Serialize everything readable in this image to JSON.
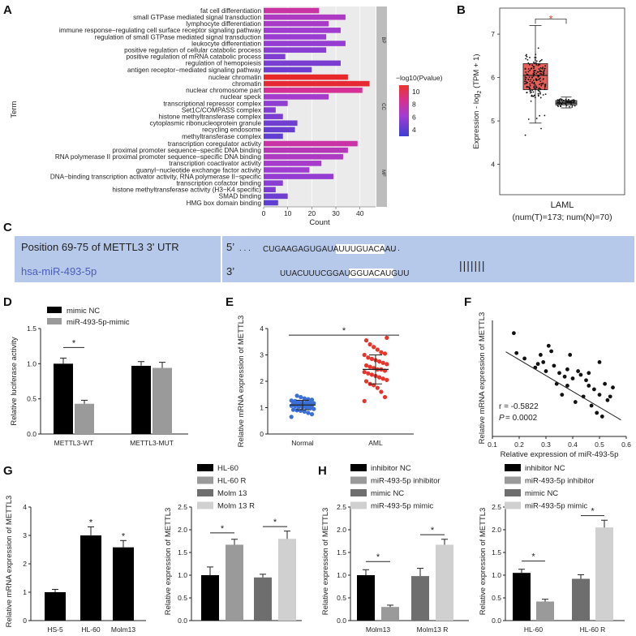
{
  "panels": {
    "A": {
      "label": "A"
    },
    "B": {
      "label": "B"
    },
    "C": {
      "label": "C"
    },
    "D": {
      "label": "D"
    },
    "E": {
      "label": "E"
    },
    "F": {
      "label": "F"
    },
    "G": {
      "label": "G"
    },
    "H": {
      "label": "H"
    }
  },
  "colors": {
    "black": "#000000",
    "gray": "#9a9a9a",
    "darkgray": "#6e6e6e",
    "lightgray": "#d0d0d0",
    "red": "#e8352c",
    "blue": "#3b3fd0",
    "seqbg": "#b7c9ea",
    "mirna": "#4b5db8"
  },
  "chart_data": [
    {
      "id": "A",
      "type": "bar",
      "orientation": "horizontal",
      "xlabel": "Count",
      "ylabel": "Term",
      "xlim": [
        0,
        45
      ],
      "xticks": [
        "0",
        "10",
        "20",
        "30",
        "40"
      ],
      "colorbar": {
        "title": "−log10(Pvalue)",
        "ticks": [
          "10",
          "8",
          "6",
          "4"
        ],
        "min": 3,
        "max": 11
      },
      "groups": [
        {
          "name": "BP",
          "terms": [
            {
              "term": "fat cell differentiation",
              "count": 23,
              "p": 8.5
            },
            {
              "term": "small GTPase mediated signal transduction",
              "count": 34,
              "p": 7.2
            },
            {
              "term": "lymphocyte differentiation",
              "count": 27,
              "p": 7.0
            },
            {
              "term": "immune response−regulating cell surface receptor signaling pathway",
              "count": 32,
              "p": 6.7
            },
            {
              "term": "regulation of small GTPase mediated signal transduction",
              "count": 26,
              "p": 6.4
            },
            {
              "term": "leukocyte differentiation",
              "count": 34,
              "p": 6.2
            },
            {
              "term": "positive regulation of cellular catabolic process",
              "count": 26,
              "p": 5.8
            },
            {
              "term": "positive regulation of mRNA catabolic process",
              "count": 9,
              "p": 5.5
            },
            {
              "term": "regulation of hemopoiesis",
              "count": 32,
              "p": 5.2
            },
            {
              "term": "antigen receptor−mediated signaling pathway",
              "count": 20,
              "p": 4.9
            }
          ]
        },
        {
          "name": "CC",
          "terms": [
            {
              "term": "nuclear chromatin",
              "count": 35,
              "p": 11.0
            },
            {
              "term": "chromatin",
              "count": 44,
              "p": 10.8
            },
            {
              "term": "nuclear chromosome part",
              "count": 41,
              "p": 9.0
            },
            {
              "term": "nuclear speck",
              "count": 27,
              "p": 6.8
            },
            {
              "term": "transcriptional repressor complex",
              "count": 10,
              "p": 6.0
            },
            {
              "term": "Set1C/COMPASS complex",
              "count": 5,
              "p": 5.6
            },
            {
              "term": "histone methyltransferase complex",
              "count": 8,
              "p": 5.3
            },
            {
              "term": "cytoplasmic ribonucleoprotein granule",
              "count": 14,
              "p": 4.9
            },
            {
              "term": "recycling endosome",
              "count": 13,
              "p": 4.6
            },
            {
              "term": "methyltransferase complex",
              "count": 8,
              "p": 4.3
            }
          ]
        },
        {
          "name": "MF",
          "terms": [
            {
              "term": "transcription coregulator activity",
              "count": 39,
              "p": 8.4
            },
            {
              "term": "proximal promoter sequence−specific DNA binding",
              "count": 35,
              "p": 7.6
            },
            {
              "term": "RNA polymerase II proximal promoter sequence−specific DNA binding",
              "count": 33,
              "p": 7.2
            },
            {
              "term": "transcription coactivator activity",
              "count": 24,
              "p": 6.9
            },
            {
              "term": "guanyl−nucleotide exchange factor activity",
              "count": 19,
              "p": 6.6
            },
            {
              "term": "DNA−binding transcription activator activity, RNA polymerase II−specific",
              "count": 29,
              "p": 6.2
            },
            {
              "term": "transcription cofactor binding",
              "count": 8,
              "p": 5.8
            },
            {
              "term": "histone methyltransferase activity (H3−K4 specific)",
              "count": 5,
              "p": 5.4
            },
            {
              "term": "SMAD binding",
              "count": 10,
              "p": 4.8
            },
            {
              "term": "HMG box domain binding",
              "count": 6,
              "p": 4.2
            }
          ]
        }
      ]
    },
    {
      "id": "B",
      "type": "box",
      "ylabel_prefix": "Expression - log",
      "ylabel_sub": "2",
      "ylabel_suffix": " (TPM + 1)",
      "ylim": [
        3.3,
        7.6
      ],
      "yticks": [
        "4",
        "5",
        "6",
        "7"
      ],
      "xlabel": "LAML",
      "xsublabel": "(num(T)=173; num(N)=70)",
      "signif": "*",
      "boxes": [
        {
          "name": "Tumor",
          "q1": 5.72,
          "median": 6.05,
          "q3": 6.32,
          "whisker_low": 4.95,
          "whisker_high": 7.2
        },
        {
          "name": "Normal",
          "q1": 5.37,
          "median": 5.41,
          "q3": 5.47,
          "whisker_low": 5.3,
          "whisker_high": 5.55
        }
      ]
    },
    {
      "id": "C",
      "type": "table",
      "rows": [
        {
          "label": "Position 69-75 of METTL3 3' UTR",
          "end": "5’",
          "seq": "CUGAAGAGUGAUAUUUGUACAAU",
          "dots": ". . .",
          "site": "UGUACAAU"
        },
        {
          "label": "hsa-miR-493-5p",
          "end": "3’",
          "seq": "UUACUUUCGGAUGGUACAUGUU",
          "site": "ACAUGUU"
        }
      ],
      "pairing": "|||||||"
    },
    {
      "id": "D",
      "type": "bar",
      "ylabel": "Relative luciferase activity",
      "ylim": [
        0,
        1.5
      ],
      "yticks": [
        "0.0",
        "0.5",
        "1.0",
        "1.5"
      ],
      "categories": [
        "METTL3-WT",
        "METTL3-MUT"
      ],
      "series": [
        {
          "name": "mimic NC",
          "values": [
            1.0,
            0.97
          ],
          "err": [
            0.08,
            0.06
          ]
        },
        {
          "name": "miR-493-5p-mimic",
          "values": [
            0.43,
            0.94
          ],
          "err": [
            0.05,
            0.08
          ]
        }
      ],
      "signif": "*"
    },
    {
      "id": "E",
      "type": "scatter",
      "ylabel": "Relative mRNA expression of METTL3",
      "ylim": [
        0,
        4
      ],
      "yticks": [
        "0",
        "1",
        "2",
        "3",
        "4"
      ],
      "categories": [
        "Normal",
        "AML"
      ],
      "groups": [
        {
          "name": "Normal",
          "mean": 1.1,
          "sd": 0.18,
          "points": [
            0.65,
            0.75,
            0.8,
            0.85,
            0.88,
            0.9,
            0.92,
            0.95,
            0.97,
            1.0,
            1.02,
            1.03,
            1.05,
            1.07,
            1.08,
            1.1,
            1.1,
            1.12,
            1.13,
            1.15,
            1.17,
            1.18,
            1.2,
            1.2,
            1.22,
            1.25,
            1.27,
            1.3,
            1.32,
            1.35,
            1.4,
            1.45
          ]
        },
        {
          "name": "AML",
          "mean": 2.45,
          "sd": 0.55,
          "points": [
            1.25,
            1.4,
            1.6,
            1.75,
            1.85,
            1.9,
            2.0,
            2.05,
            2.1,
            2.15,
            2.2,
            2.25,
            2.3,
            2.35,
            2.4,
            2.45,
            2.45,
            2.5,
            2.55,
            2.6,
            2.65,
            2.7,
            2.75,
            2.8,
            2.85,
            2.9,
            3.0,
            3.05,
            3.1,
            3.2,
            3.3,
            3.4,
            3.55,
            3.65
          ]
        }
      ],
      "signif": "*"
    },
    {
      "id": "F",
      "type": "scatter",
      "xlabel": "Relative expression of miR-493-5p",
      "ylabel": "Relative mRNA expression of METTL3",
      "xlim": [
        0.1,
        0.6
      ],
      "ylim": [
        0.8,
        4.0
      ],
      "xticks": [
        "0.1",
        "0.2",
        "0.3",
        "0.4",
        "0.5",
        "0.6"
      ],
      "r_text": "r = -0.5822",
      "p_label": "P",
      "p_value": " = 0.0002",
      "fit": {
        "slope": -4.37,
        "intercept": 3.79
      },
      "points": [
        [
          0.18,
          3.65
        ],
        [
          0.19,
          3.1
        ],
        [
          0.22,
          2.95
        ],
        [
          0.26,
          2.7
        ],
        [
          0.28,
          3.05
        ],
        [
          0.29,
          2.85
        ],
        [
          0.3,
          2.6
        ],
        [
          0.31,
          3.3
        ],
        [
          0.32,
          3.15
        ],
        [
          0.33,
          2.75
        ],
        [
          0.34,
          2.25
        ],
        [
          0.35,
          2.55
        ],
        [
          0.36,
          1.95
        ],
        [
          0.37,
          2.45
        ],
        [
          0.38,
          2.2
        ],
        [
          0.39,
          3.05
        ],
        [
          0.4,
          2.4
        ],
        [
          0.41,
          1.75
        ],
        [
          0.42,
          2.6
        ],
        [
          0.43,
          2.5
        ],
        [
          0.44,
          1.9
        ],
        [
          0.45,
          2.35
        ],
        [
          0.46,
          2.55
        ],
        [
          0.47,
          1.65
        ],
        [
          0.48,
          2.1
        ],
        [
          0.49,
          1.45
        ],
        [
          0.5,
          2.85
        ],
        [
          0.5,
          1.95
        ],
        [
          0.51,
          1.35
        ],
        [
          0.52,
          2.25
        ],
        [
          0.53,
          1.8
        ],
        [
          0.54,
          1.9
        ],
        [
          0.55,
          2.15
        ],
        [
          0.46,
          2.2
        ],
        [
          0.38,
          2.65
        ],
        [
          0.27,
          2.8
        ]
      ]
    },
    {
      "id": "G1",
      "type": "bar",
      "ylabel": "Relative mRNA expression of METTL3",
      "ylim": [
        0,
        4
      ],
      "yticks": [
        "0",
        "1",
        "2",
        "3",
        "4"
      ],
      "categories": [
        "HS-5",
        "HL-60",
        "Molm13"
      ],
      "series": [
        {
          "name": "cells",
          "values": [
            1.0,
            3.0,
            2.58
          ],
          "err": [
            0.1,
            0.3,
            0.24
          ]
        }
      ],
      "signif": [
        "",
        "*",
        "*"
      ]
    },
    {
      "id": "G2",
      "type": "bar",
      "ylabel": "Relative expression of METTL3",
      "ylim": [
        0,
        2.5
      ],
      "yticks": [
        "0.0",
        "0.5",
        "1.0",
        "1.5",
        "2.0",
        "2.5"
      ],
      "categories": [
        "HL-60",
        "HL-60 R",
        "Molm 13",
        "Molm 13 R"
      ],
      "values": [
        1.0,
        1.67,
        0.95,
        1.8
      ],
      "err": [
        0.18,
        0.12,
        0.07,
        0.17
      ],
      "legend": [
        "HL-60",
        "HL-60 R",
        "Molm 13",
        "Molm 13 R"
      ],
      "signif": "*"
    },
    {
      "id": "H1",
      "type": "bar",
      "ylabel": "Relative expression of METTL3",
      "ylim": [
        0,
        2.5
      ],
      "yticks": [
        "0.0",
        "0.5",
        "1.0",
        "1.5",
        "2.0",
        "2.5"
      ],
      "categories": [
        "Molm13",
        "Molm13 R"
      ],
      "series": [
        {
          "name": "inhibitor NC",
          "values": [
            1.0,
            null
          ]
        },
        {
          "name": "miR-493-5p inhibitor",
          "values": [
            0.3,
            null
          ]
        },
        {
          "name": "mimic NC",
          "values": [
            null,
            0.98
          ]
        },
        {
          "name": "miR-493-5p mimic",
          "values": [
            null,
            1.67
          ]
        }
      ],
      "err": [
        0.12,
        0.04,
        0.17,
        0.12
      ],
      "signif": "*"
    },
    {
      "id": "H2",
      "type": "bar",
      "ylabel": "Relative expression of METTL3",
      "ylim": [
        0,
        2.5
      ],
      "yticks": [
        "0.0",
        "0.5",
        "1.0",
        "1.5",
        "2.0",
        "2.5"
      ],
      "categories": [
        "HL-60",
        "HL-60 R"
      ],
      "series": [
        {
          "name": "inhibitor NC",
          "values": [
            1.05,
            null
          ]
        },
        {
          "name": "miR-493-5p inhibitor",
          "values": [
            0.42,
            null
          ]
        },
        {
          "name": "mimic NC",
          "values": [
            null,
            0.92
          ]
        },
        {
          "name": "miR-493-5p mimic",
          "values": [
            null,
            2.05
          ]
        }
      ],
      "err": [
        0.08,
        0.05,
        0.09,
        0.16
      ],
      "signif": "*"
    }
  ]
}
